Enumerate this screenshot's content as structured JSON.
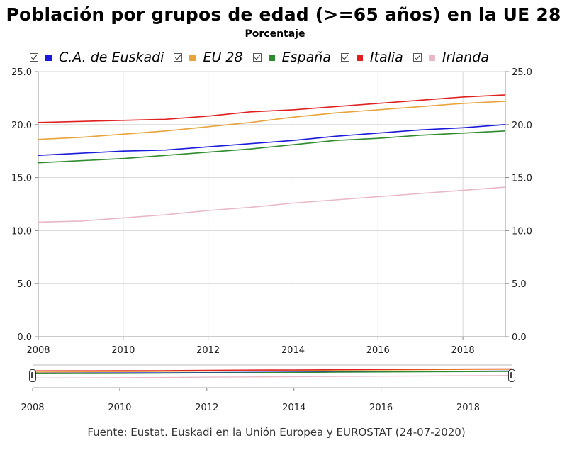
{
  "header": {
    "title": "Población por grupos de edad (>=65 años) en la UE 28",
    "subtitle": "Porcentaje"
  },
  "legend": [
    {
      "label": "C.A. de Euskadi",
      "color": "#1a1adb"
    },
    {
      "label": "EU 28",
      "color": "#e8a33a"
    },
    {
      "label": "España",
      "color": "#2e8b2e"
    },
    {
      "label": "Italia",
      "color": "#e02020"
    },
    {
      "label": "Irlanda",
      "color": "#e8b8c4"
    }
  ],
  "footer": {
    "source": "Fuente: Eustat. Euskadi en la Unión Europea y EUROSTAT (24-07-2020)"
  },
  "chart_data": {
    "type": "line",
    "title": "Población por grupos de edad (>=65 años) en la UE 28",
    "subtitle": "Porcentaje",
    "x": [
      2008,
      2009,
      2010,
      2011,
      2012,
      2013,
      2014,
      2015,
      2016,
      2017,
      2018,
      2019
    ],
    "x_ticks": [
      "2008",
      "2010",
      "2012",
      "2014",
      "2016",
      "2018"
    ],
    "y_ticks": [
      "0.0",
      "5.0",
      "10.0",
      "15.0",
      "20.0",
      "25.0"
    ],
    "ylim": [
      0,
      25
    ],
    "xlim": [
      2008,
      2019
    ],
    "grid": true,
    "legend_position": "top",
    "secondary_y_axis": true,
    "range_navigator": true,
    "series": [
      {
        "name": "C.A. de Euskadi",
        "color": "#1a1adb",
        "values": [
          17.1,
          17.3,
          17.5,
          17.6,
          17.9,
          18.2,
          18.5,
          18.9,
          19.2,
          19.5,
          19.7,
          20.0
        ]
      },
      {
        "name": "EU 28",
        "color": "#e8a33a",
        "values": [
          18.6,
          18.8,
          19.1,
          19.4,
          19.8,
          20.2,
          20.7,
          21.1,
          21.4,
          21.7,
          22.0,
          22.2
        ]
      },
      {
        "name": "España",
        "color": "#2e8b2e",
        "values": [
          16.4,
          16.6,
          16.8,
          17.1,
          17.4,
          17.7,
          18.1,
          18.5,
          18.7,
          19.0,
          19.2,
          19.4
        ]
      },
      {
        "name": "Italia",
        "color": "#e02020",
        "values": [
          20.2,
          20.3,
          20.4,
          20.5,
          20.8,
          21.2,
          21.4,
          21.7,
          22.0,
          22.3,
          22.6,
          22.8
        ]
      },
      {
        "name": "Irlanda",
        "color": "#e8b8c4",
        "values": [
          10.8,
          10.9,
          11.2,
          11.5,
          11.9,
          12.2,
          12.6,
          12.9,
          13.2,
          13.5,
          13.8,
          14.1
        ]
      }
    ]
  }
}
